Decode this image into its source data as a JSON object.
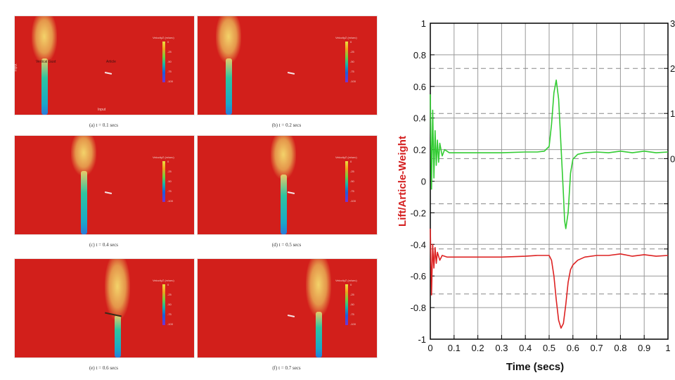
{
  "figure": {
    "panels": [
      {
        "caption": "(a) t = 0.1 secs"
      },
      {
        "caption": "(b) t = 0.2 secs"
      },
      {
        "caption": "(c) t = 0.4 secs"
      },
      {
        "caption": "(d) t = 0.5 secs"
      },
      {
        "caption": "(e) t = 0.6 secs"
      },
      {
        "caption": "(f) t = 0.7 secs"
      }
    ],
    "legend_title": "VelocityZ (m/sec)",
    "legend_ticks": [
      "0",
      "-25",
      "-50",
      "-75",
      "-100"
    ],
    "annotations": {
      "vertical_input": "Input",
      "bottom_input": "Input",
      "jet_label": "Vertical Gust",
      "article_label": "Article"
    },
    "colors": {
      "background_field": "#d21f1b",
      "jet": "#2ec4a0",
      "plume": "#f0d070"
    }
  },
  "chart_data": {
    "type": "line",
    "title": "",
    "xlabel": "Time (secs)",
    "ylabel": "Lift/Article-Weight",
    "ylabel_color": "#d42020",
    "xlim": [
      0,
      1
    ],
    "ylim": [
      -1,
      1
    ],
    "x_ticks": [
      "0",
      "0.1",
      "0.2",
      "0.3",
      "0.4",
      "0.5",
      "0.6",
      "0.7",
      "0.8",
      "0.9",
      "1"
    ],
    "y_ticks": [
      "1",
      "0.8",
      "0.6",
      "0.4",
      "0.2",
      "0",
      "-0.2",
      "-0.4",
      "-0.6",
      "-0.8",
      "-1"
    ],
    "right_axis_ticks_partial": [
      "3",
      "2",
      "1",
      "0",
      "",
      "",
      ""
    ],
    "grid": true,
    "dashed_reference_lines_y": [
      0.714,
      0.429,
      0.143,
      -0.143,
      -0.429,
      -0.714
    ],
    "series": [
      {
        "color": "#33cc33",
        "x": [
          0,
          0.005,
          0.01,
          0.015,
          0.02,
          0.025,
          0.03,
          0.035,
          0.04,
          0.05,
          0.06,
          0.08,
          0.1,
          0.2,
          0.3,
          0.4,
          0.45,
          0.48,
          0.5,
          0.51,
          0.52,
          0.53,
          0.54,
          0.55,
          0.56,
          0.565,
          0.57,
          0.58,
          0.59,
          0.6,
          0.62,
          0.65,
          0.7,
          0.75,
          0.8,
          0.85,
          0.9,
          0.95,
          1.0
        ],
        "y": [
          0.55,
          -0.05,
          0.45,
          0.02,
          0.32,
          0.1,
          0.26,
          0.12,
          0.24,
          0.16,
          0.2,
          0.18,
          0.18,
          0.18,
          0.18,
          0.185,
          0.185,
          0.19,
          0.22,
          0.36,
          0.56,
          0.64,
          0.52,
          0.22,
          -0.08,
          -0.25,
          -0.3,
          -0.2,
          0.05,
          0.14,
          0.17,
          0.18,
          0.185,
          0.18,
          0.19,
          0.18,
          0.19,
          0.18,
          0.185
        ]
      },
      {
        "color": "#dd2222",
        "x": [
          0,
          0.005,
          0.01,
          0.015,
          0.02,
          0.025,
          0.03,
          0.04,
          0.05,
          0.07,
          0.1,
          0.2,
          0.3,
          0.4,
          0.45,
          0.5,
          0.51,
          0.52,
          0.53,
          0.54,
          0.55,
          0.56,
          0.57,
          0.58,
          0.59,
          0.6,
          0.62,
          0.65,
          0.7,
          0.75,
          0.8,
          0.85,
          0.9,
          0.95,
          1.0
        ],
        "y": [
          -0.3,
          -0.72,
          -0.4,
          -0.55,
          -0.42,
          -0.52,
          -0.45,
          -0.5,
          -0.47,
          -0.48,
          -0.48,
          -0.48,
          -0.48,
          -0.475,
          -0.47,
          -0.47,
          -0.5,
          -0.6,
          -0.75,
          -0.88,
          -0.93,
          -0.9,
          -0.78,
          -0.64,
          -0.56,
          -0.53,
          -0.5,
          -0.48,
          -0.47,
          -0.47,
          -0.46,
          -0.475,
          -0.465,
          -0.475,
          -0.47
        ]
      }
    ]
  }
}
